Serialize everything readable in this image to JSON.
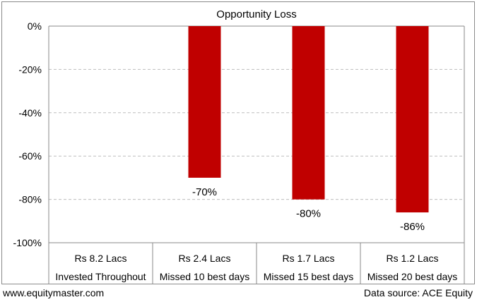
{
  "chart_data": {
    "type": "bar",
    "title": "Opportunity Loss",
    "categories": [
      [
        "Rs 8.2 Lacs",
        "Invested Throughout"
      ],
      [
        "Rs 2.4 Lacs",
        "Missed 10 best days"
      ],
      [
        "Rs 1.7 Lacs",
        "Missed 15 best days"
      ],
      [
        "Rs 1.2 Lacs",
        "Missed 20 best days"
      ]
    ],
    "values": [
      0,
      -70,
      -80,
      -86
    ],
    "data_labels": [
      "",
      "-70%",
      "-80%",
      "-86%"
    ],
    "ylim": [
      -100,
      0
    ],
    "yticks": [
      0,
      -20,
      -40,
      -60,
      -80,
      -100
    ],
    "ytick_labels": [
      "0%",
      "-20%",
      "-40%",
      "-60%",
      "-80%",
      "-100%"
    ],
    "xlabel": "",
    "ylabel": "",
    "grid": true,
    "bar_color": "#c00000"
  },
  "footer": {
    "source_site": "www.equitymaster.com",
    "data_source": "Data source: ACE Equity"
  }
}
